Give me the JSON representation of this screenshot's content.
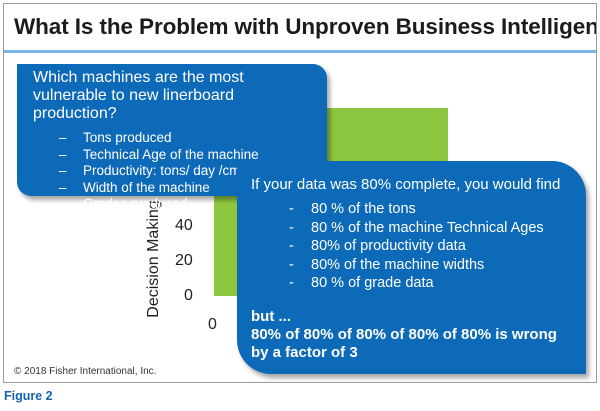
{
  "slide": {
    "title": "What Is the Problem with Unproven Business Intelligence?",
    "copyright": "© 2018 Fisher International, Inc.",
    "background_chart": {
      "ylabel": "Decision Making",
      "tick_labels": [
        "40",
        "20",
        "0",
        "0"
      ],
      "bar_color": "#8dc63f"
    },
    "callout_left": {
      "question": "Which machines are the most vulnerable to new linerboard production?",
      "items": [
        "Tons produced",
        "Technical Age of the machine",
        "Productivity: tons/ day /cm of width",
        "Width of the machine",
        "Grades produced"
      ]
    },
    "callout_right": {
      "lead": "If your data was 80% complete, you would find",
      "items": [
        "80 % of the tons",
        "80 % of the machine Technical Ages",
        "80% of productivity data",
        "80% of the machine widths",
        "80 % of grade data"
      ],
      "but": "but ...",
      "conclusion": "80% of 80% of 80% of 80% of 80% is wrong by a factor of 3"
    },
    "colors": {
      "callout_blue": "#0d6ab8",
      "rule_blue": "#7bb5e6",
      "caption_blue": "#1464b4"
    }
  },
  "caption": "Figure 2"
}
